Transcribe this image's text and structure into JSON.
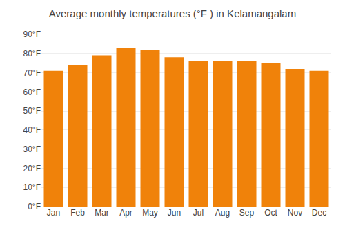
{
  "chart_data": {
    "type": "bar",
    "title": "Average monthly temperatures (°F ) in Kelamangalam",
    "categories": [
      "Jan",
      "Feb",
      "Mar",
      "Apr",
      "May",
      "Jun",
      "Jul",
      "Aug",
      "Sep",
      "Oct",
      "Nov",
      "Dec"
    ],
    "values": [
      71,
      74,
      79,
      83,
      82,
      78,
      76,
      76,
      76,
      75,
      72,
      71
    ],
    "color": "#F0820A",
    "ylim": [
      0,
      90
    ],
    "yticks": [
      {
        "value": 0,
        "label": "0°F"
      },
      {
        "value": 10,
        "label": "10°F"
      },
      {
        "value": 20,
        "label": "20°F"
      },
      {
        "value": 30,
        "label": "30°F"
      },
      {
        "value": 40,
        "label": "40°F"
      },
      {
        "value": 50,
        "label": "50°F"
      },
      {
        "value": 60,
        "label": "60°F"
      },
      {
        "value": 70,
        "label": "70°F"
      },
      {
        "value": 80,
        "label": "80°F"
      },
      {
        "value": 90,
        "label": "90°F"
      }
    ],
    "grid": true
  }
}
